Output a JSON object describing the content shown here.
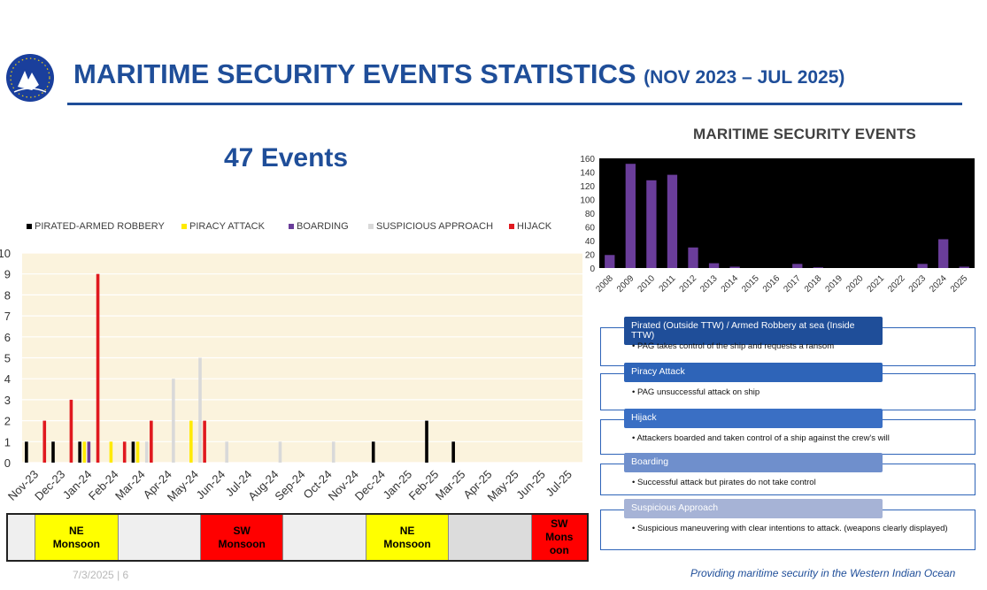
{
  "header": {
    "title": "MARITIME SECURITY EVENTS STATISTICS",
    "subtitle": "(NOV 2023 – JUL 2025)",
    "logo_text_top": "EU NAVFOR",
    "logo_text_bottom": "OPERATION ATALANTA"
  },
  "events_count": "47 Events",
  "chart_data": [
    {
      "type": "bar",
      "categories": [
        "Nov-23",
        "Dec-23",
        "Jan-24",
        "Feb-24",
        "Mar-24",
        "Apr-24",
        "May-24",
        "Jun-24",
        "Jul-24",
        "Aug-24",
        "Sep-24",
        "Oct-24",
        "Nov-24",
        "Dec-24",
        "Jan-25",
        "Feb-25",
        "Mar-25",
        "Apr-25",
        "May-25",
        "Jun-25",
        "Jul-25"
      ],
      "ylim": [
        0,
        10
      ],
      "yticks": [
        0,
        1,
        2,
        3,
        4,
        5,
        6,
        7,
        8,
        9,
        10
      ],
      "legend_position": "top",
      "series": [
        {
          "name": "PIRATED-ARMED ROBBERY",
          "color": "#000000",
          "values": [
            1,
            1,
            1,
            0,
            1,
            0,
            0,
            0,
            0,
            0,
            0,
            0,
            0,
            1,
            0,
            2,
            1,
            0,
            0,
            0,
            0
          ]
        },
        {
          "name": "PIRACY ATTACK",
          "color": "#ffea00",
          "values": [
            0,
            0,
            1,
            1,
            1,
            0,
            2,
            0,
            0,
            0,
            0,
            0,
            0,
            0,
            0,
            0,
            0,
            0,
            0,
            0,
            0
          ]
        },
        {
          "name": "BOARDING",
          "color": "#6a3d9a",
          "values": [
            0,
            0,
            1,
            0,
            0,
            0,
            0,
            0,
            0,
            0,
            0,
            0,
            0,
            0,
            0,
            0,
            0,
            0,
            0,
            0,
            0
          ]
        },
        {
          "name": "SUSPICIOUS APPROACH",
          "color": "#d9d9d9",
          "values": [
            0,
            0,
            0,
            0,
            1,
            4,
            5,
            1,
            0,
            1,
            0,
            1,
            0,
            0,
            0,
            0,
            0,
            0,
            0,
            0,
            0
          ]
        },
        {
          "name": "HIJACK",
          "color": "#e0191f",
          "values": [
            2,
            3,
            9,
            1,
            2,
            0,
            2,
            0,
            0,
            0,
            0,
            0,
            0,
            0,
            0,
            0,
            0,
            0,
            0,
            0,
            0
          ]
        }
      ]
    },
    {
      "type": "bar",
      "title": "MARITIME SECURITY EVENTS",
      "categories": [
        "2008",
        "2009",
        "2010",
        "2011",
        "2012",
        "2013",
        "2014",
        "2015",
        "2016",
        "2017",
        "2018",
        "2019",
        "2020",
        "2021",
        "2022",
        "2023",
        "2024",
        "2025"
      ],
      "values": [
        19,
        152,
        128,
        136,
        30,
        7,
        2,
        0,
        0,
        6,
        1,
        0,
        0,
        0,
        0,
        6,
        42,
        2
      ],
      "ylim": [
        0,
        160
      ],
      "yticks": [
        0,
        20,
        40,
        60,
        80,
        100,
        120,
        140,
        160
      ],
      "bar_color": "#6a3d9a",
      "plot_background": "#000000"
    }
  ],
  "monsoon": [
    {
      "line1": "",
      "line2": "",
      "line3": "",
      "bg": "#efefef",
      "span": 1
    },
    {
      "line1": "NE",
      "line2": "Monsoon",
      "line3": "",
      "bg": "#ffff00",
      "span": 3
    },
    {
      "line1": "",
      "line2": "",
      "line3": "",
      "bg": "#efefef",
      "span": 3
    },
    {
      "line1": "SW",
      "line2": "Monsoon",
      "line3": "",
      "bg": "#ff0000",
      "span": 3
    },
    {
      "line1": "",
      "line2": "",
      "line3": "",
      "bg": "#efefef",
      "span": 3
    },
    {
      "line1": "NE",
      "line2": "Monsoon",
      "line3": "",
      "bg": "#ffff00",
      "span": 3
    },
    {
      "line1": "",
      "line2": "",
      "line3": "",
      "bg": "#dcdcdc",
      "span": 3
    },
    {
      "line1": "SW",
      "line2": "Mons",
      "line3": "oon",
      "bg": "#ff0000",
      "span": 2
    }
  ],
  "definitions": [
    {
      "header": "Pirated (Outside TTW) / Armed Robbery at sea (Inside TTW)",
      "text": "PAG takes control of the ship and requests a ransom",
      "header_color": "#1f4e99"
    },
    {
      "header": "Piracy Attack",
      "text": "PAG unsuccessful attack on ship",
      "header_color": "#2e64b8"
    },
    {
      "header": "Hijack",
      "text": "Attackers boarded and taken control of a ship against the crew's will",
      "header_color": "#3a6fc4"
    },
    {
      "header": "Boarding",
      "text": "Successful attack but pirates do not take control",
      "header_color": "#6f8fcc"
    },
    {
      "header": "Suspicious Approach",
      "text": "Suspicious maneuvering with clear intentions to attack. (weapons clearly displayed)",
      "header_color": "#a6b3d6"
    }
  ],
  "footer": {
    "date": "7/3/2025",
    "page": "6",
    "note": "Providing maritime security in the Western Indian Ocean"
  }
}
